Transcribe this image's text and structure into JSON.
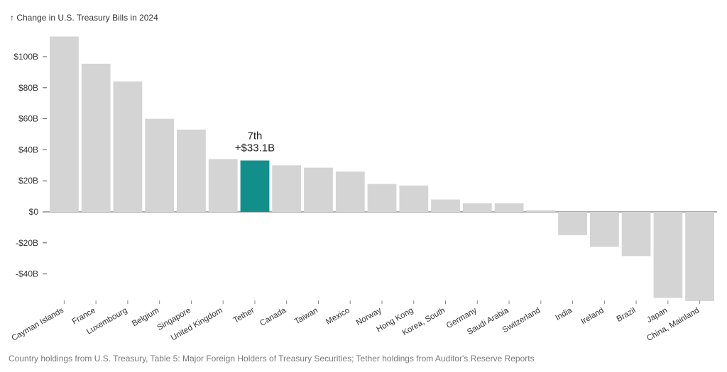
{
  "chart_data": {
    "type": "bar",
    "title": "↑ Change in U.S. Treasury Bills in 2024",
    "source": "Country holdings from U.S. Treasury, Table 5: Major Foreign Holders of Treasury Securities; Tether holdings from Auditor's Reserve Reports",
    "categories": [
      "Cayman Islands",
      "France",
      "Luxembourg",
      "Belgium",
      "Singapore",
      "United Kingdom",
      "Tether",
      "Canada",
      "Taiwan",
      "Mexico",
      "Norway",
      "Hong Kong",
      "Korea, South",
      "Germany",
      "Saudi Arabia",
      "Switzerland",
      "India",
      "Ireland",
      "Brazil",
      "Japan",
      "China, Mainland"
    ],
    "values": [
      113,
      95.5,
      84,
      60,
      53,
      34,
      33.1,
      30,
      28.5,
      26,
      18,
      17,
      8,
      5.5,
      5.5,
      1,
      -15,
      -22.5,
      -28.5,
      -55.5,
      -57.5
    ],
    "ylim": [
      -55,
      115
    ],
    "yticks": [
      -40,
      -20,
      0,
      20,
      40,
      60,
      80,
      100
    ],
    "ytick_labels": [
      "-$40B",
      "-$20B",
      "$0",
      "$20B",
      "$40B",
      "$60B",
      "$80B",
      "$100B"
    ],
    "highlight": "Tether",
    "annotation": {
      "rank": "7th",
      "value": "+$33.1B"
    },
    "colors": {
      "bar": "#d4d4d4",
      "highlight": "#128f8b",
      "axis": "#555555"
    },
    "grid": false
  }
}
